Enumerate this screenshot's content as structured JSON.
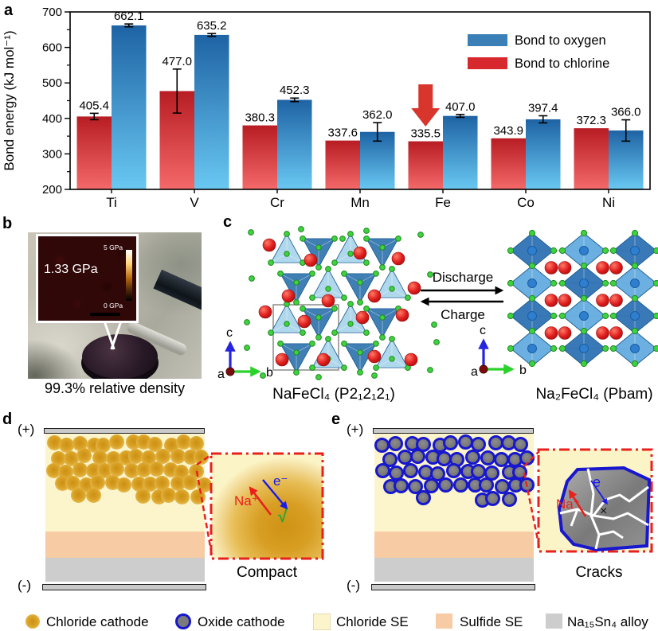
{
  "figure": {
    "panel_labels": {
      "a": "a",
      "b": "b",
      "c": "c",
      "d": "d",
      "e": "e"
    }
  },
  "chart_data": {
    "type": "bar",
    "title": "",
    "ylabel": "Bond energy (kJ mol⁻¹)",
    "xlabel": "",
    "categories": [
      "Ti",
      "V",
      "Cr",
      "Mn",
      "Fe",
      "Co",
      "Ni"
    ],
    "ylim": [
      200,
      700
    ],
    "yticks": [
      200,
      300,
      400,
      500,
      600,
      700
    ],
    "grid": false,
    "legend_position": "top-right",
    "legend_order": [
      "Bond to oxygen",
      "Bond to chlorine"
    ],
    "series": [
      {
        "name": "Bond to chlorine",
        "values": [
          405.4,
          477.0,
          380.3,
          337.6,
          335.5,
          343.9,
          372.3
        ],
        "errors": [
          9,
          62,
          0,
          0,
          0,
          0,
          0
        ],
        "color": "#d7282e",
        "gradient_top": "#b71d23",
        "gradient_bottom": "#f4696a"
      },
      {
        "name": "Bond to oxygen",
        "values": [
          662.1,
          635.2,
          452.3,
          362.0,
          407.0,
          397.4,
          366.0
        ],
        "errors": [
          4,
          4,
          5,
          26,
          4,
          10,
          30
        ],
        "color": "#3a7fb5",
        "gradient_top": "#1e63a4",
        "gradient_bottom": "#69c8f2"
      }
    ],
    "annotation": {
      "type": "down-arrow",
      "target_category": "Fe",
      "target_series": "Bond to chlorine",
      "color": "#d8352c"
    }
  },
  "panel_b": {
    "inset_value": "1.33 GPa",
    "scale_top": "5 GPa",
    "scale_bottom": "0 GPa",
    "caption": "99.3% relative density"
  },
  "panel_c": {
    "left_caption": "NaFeCl₄ (P2₁2₁2₁)",
    "right_caption": "Na₂FeCl₄ (Pbam)",
    "forward_label": "Discharge",
    "reverse_label": "Charge",
    "axes": {
      "up": "c",
      "right": "b",
      "origin": "a"
    },
    "colors": {
      "tetra_light": "#a9d5ec",
      "tetra_dark": "#2f74ae",
      "octa_light": "#63acde",
      "octa_dark": "#2e72b4",
      "chlorine_green": "#3fd13f",
      "sodium_red": "#e01f1f",
      "iron_blue": "#2f7fd0"
    }
  },
  "panel_d": {
    "positive": "(+)",
    "negative": "(-)",
    "caption": "Compact",
    "ion_label": "Na⁺",
    "electron_label": "e⁻",
    "ok_mark": "√"
  },
  "panel_e": {
    "positive": "(+)",
    "negative": "(-)",
    "caption": "Cracks",
    "ion_label": "Na⁺",
    "electron_label": "e",
    "fail_mark": "×"
  },
  "stack_colors": {
    "chloride_se": "#fcf5cc",
    "sulfide_se": "#f7cba4",
    "alloy": "#cdcdcd",
    "electrode": "#c9c9c9",
    "cathode_gold": "#dda42c",
    "oxide_gray": "#7b7b7b",
    "oxide_border": "#1717cf",
    "inset_border": "#e8211d"
  },
  "legend": {
    "items": [
      {
        "swatch": "gold-circle",
        "label": "Chloride cathode"
      },
      {
        "swatch": "oxide-circle",
        "label": "Oxide cathode"
      },
      {
        "swatch": "chloride-square",
        "label": "Chloride SE"
      },
      {
        "swatch": "sulfide-square",
        "label": "Sulfide SE"
      },
      {
        "swatch": "gray-square",
        "label": "Na₁₅Sn₄ alloy"
      }
    ]
  }
}
